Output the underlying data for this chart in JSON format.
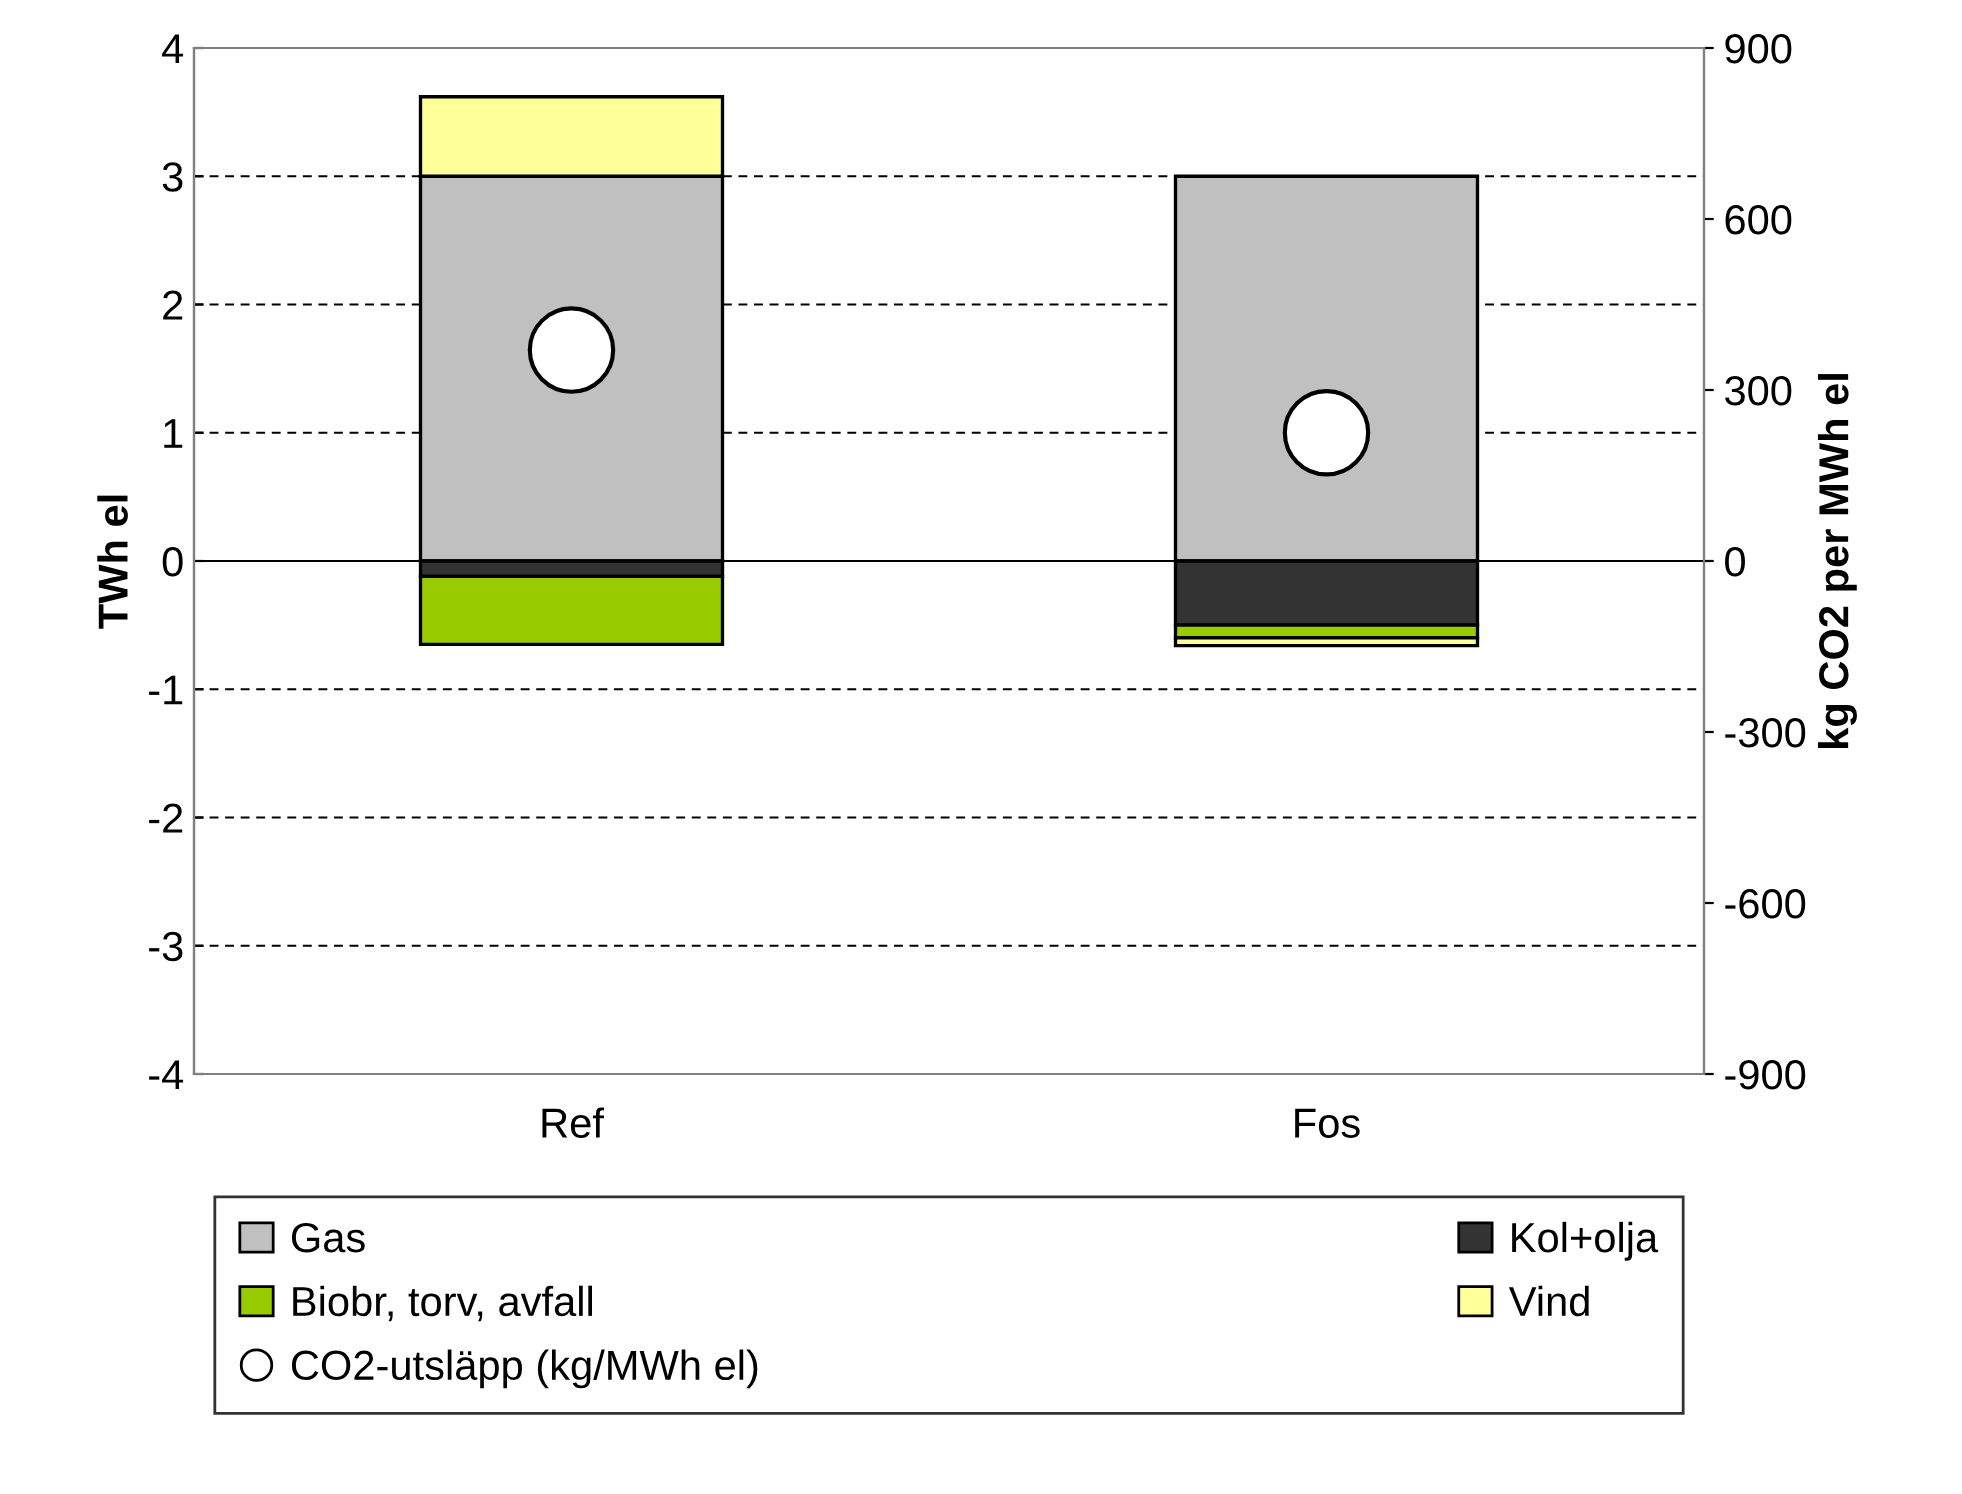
{
  "chart_data": {
    "type": "bar",
    "stacked": true,
    "categories": [
      "Ref",
      "Fos"
    ],
    "series": [
      {
        "name": "Gas",
        "color": "#c0c0c0",
        "values": [
          3.0,
          3.0
        ]
      },
      {
        "name": "Kol+olja",
        "color": "#333333",
        "values": [
          -0.12,
          -0.5
        ]
      },
      {
        "name": "Biobr, torv, avfall",
        "color": "#99cc00",
        "values": [
          -0.53,
          -0.1
        ]
      },
      {
        "name": "Vind",
        "color": "#ffff99",
        "values": [
          0.62,
          -0.06
        ]
      },
      {
        "name": "CO2-utsläpp (kg/MWh el)",
        "type": "scatter",
        "axis": "y2",
        "color": "#ffffff",
        "marker": "circle",
        "values": [
          370,
          225
        ]
      }
    ],
    "ylabel": "TWh el",
    "y2label": "kg CO2 per MWh el",
    "ylim": [
      -4,
      4
    ],
    "yticks": [
      -4,
      -3,
      -2,
      -1,
      0,
      1,
      2,
      3,
      4
    ],
    "y2lim": [
      -900,
      900
    ],
    "y2ticks": [
      -900,
      -600,
      -300,
      0,
      300,
      600,
      900
    ],
    "grid": "y",
    "legend": "bottom"
  }
}
